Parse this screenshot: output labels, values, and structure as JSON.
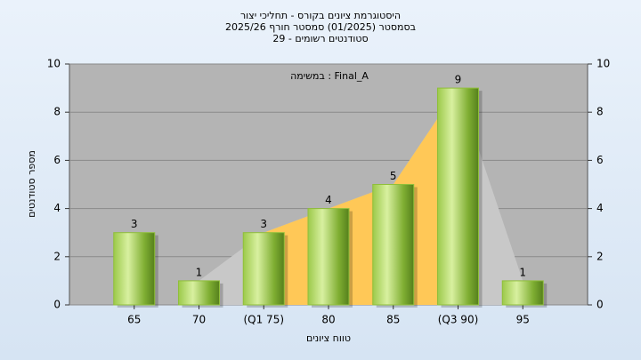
{
  "chart_data": {
    "type": "bar",
    "title": [
      "היסטוגרמת ציונים בקורס - תחליכי יצור",
      "בסמסטר (01/2025) סמסטר חורף 2025/26",
      "סטודנטים רשומים - 29"
    ],
    "annotation": "במשימה : Final_A",
    "x_label": "טווח ציונים",
    "y_label": "מספר סטודנטים",
    "categories": [
      "65",
      "70",
      "(Q1 75)",
      "80",
      "85",
      "(Q3 90)",
      "95"
    ],
    "values": [
      3,
      1,
      3,
      4,
      5,
      9,
      1
    ],
    "color": "#8fbf3a",
    "area_color": "#c8c8c8",
    "quartile_color": "#ffc857",
    "ylim": [
      0,
      10
    ],
    "yticks": [
      0,
      2,
      4,
      6,
      8,
      10
    ],
    "y2lim": [
      0,
      10
    ],
    "y2ticks": [
      0,
      2,
      4,
      6,
      8,
      10
    ],
    "grid": true
  }
}
